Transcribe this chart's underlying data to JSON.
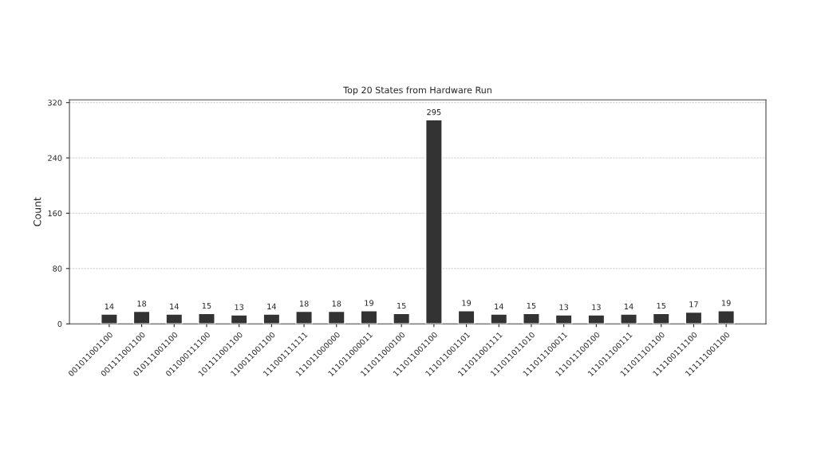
{
  "chart_data": {
    "type": "bar",
    "title": "Top 20 States from Hardware Run",
    "ylabel": "Count",
    "categories": [
      "001011001100",
      "001111001100",
      "010111001100",
      "011000111100",
      "101111001100",
      "110011001100",
      "111001111111",
      "111011000000",
      "111011000011",
      "111011000100",
      "111011001100",
      "111011001101",
      "111011001111",
      "111011011010",
      "111011100011",
      "111011100100",
      "111011100111",
      "111011101100",
      "111100111100",
      "111111001100"
    ],
    "values": [
      14,
      18,
      14,
      15,
      13,
      14,
      18,
      18,
      19,
      15,
      295,
      19,
      14,
      15,
      13,
      13,
      14,
      15,
      17,
      19
    ],
    "color": "#333333",
    "ylim": [
      0,
      324
    ],
    "yticks": [
      0,
      80,
      160,
      240,
      320
    ],
    "grid": "y",
    "data_labels": true
  }
}
